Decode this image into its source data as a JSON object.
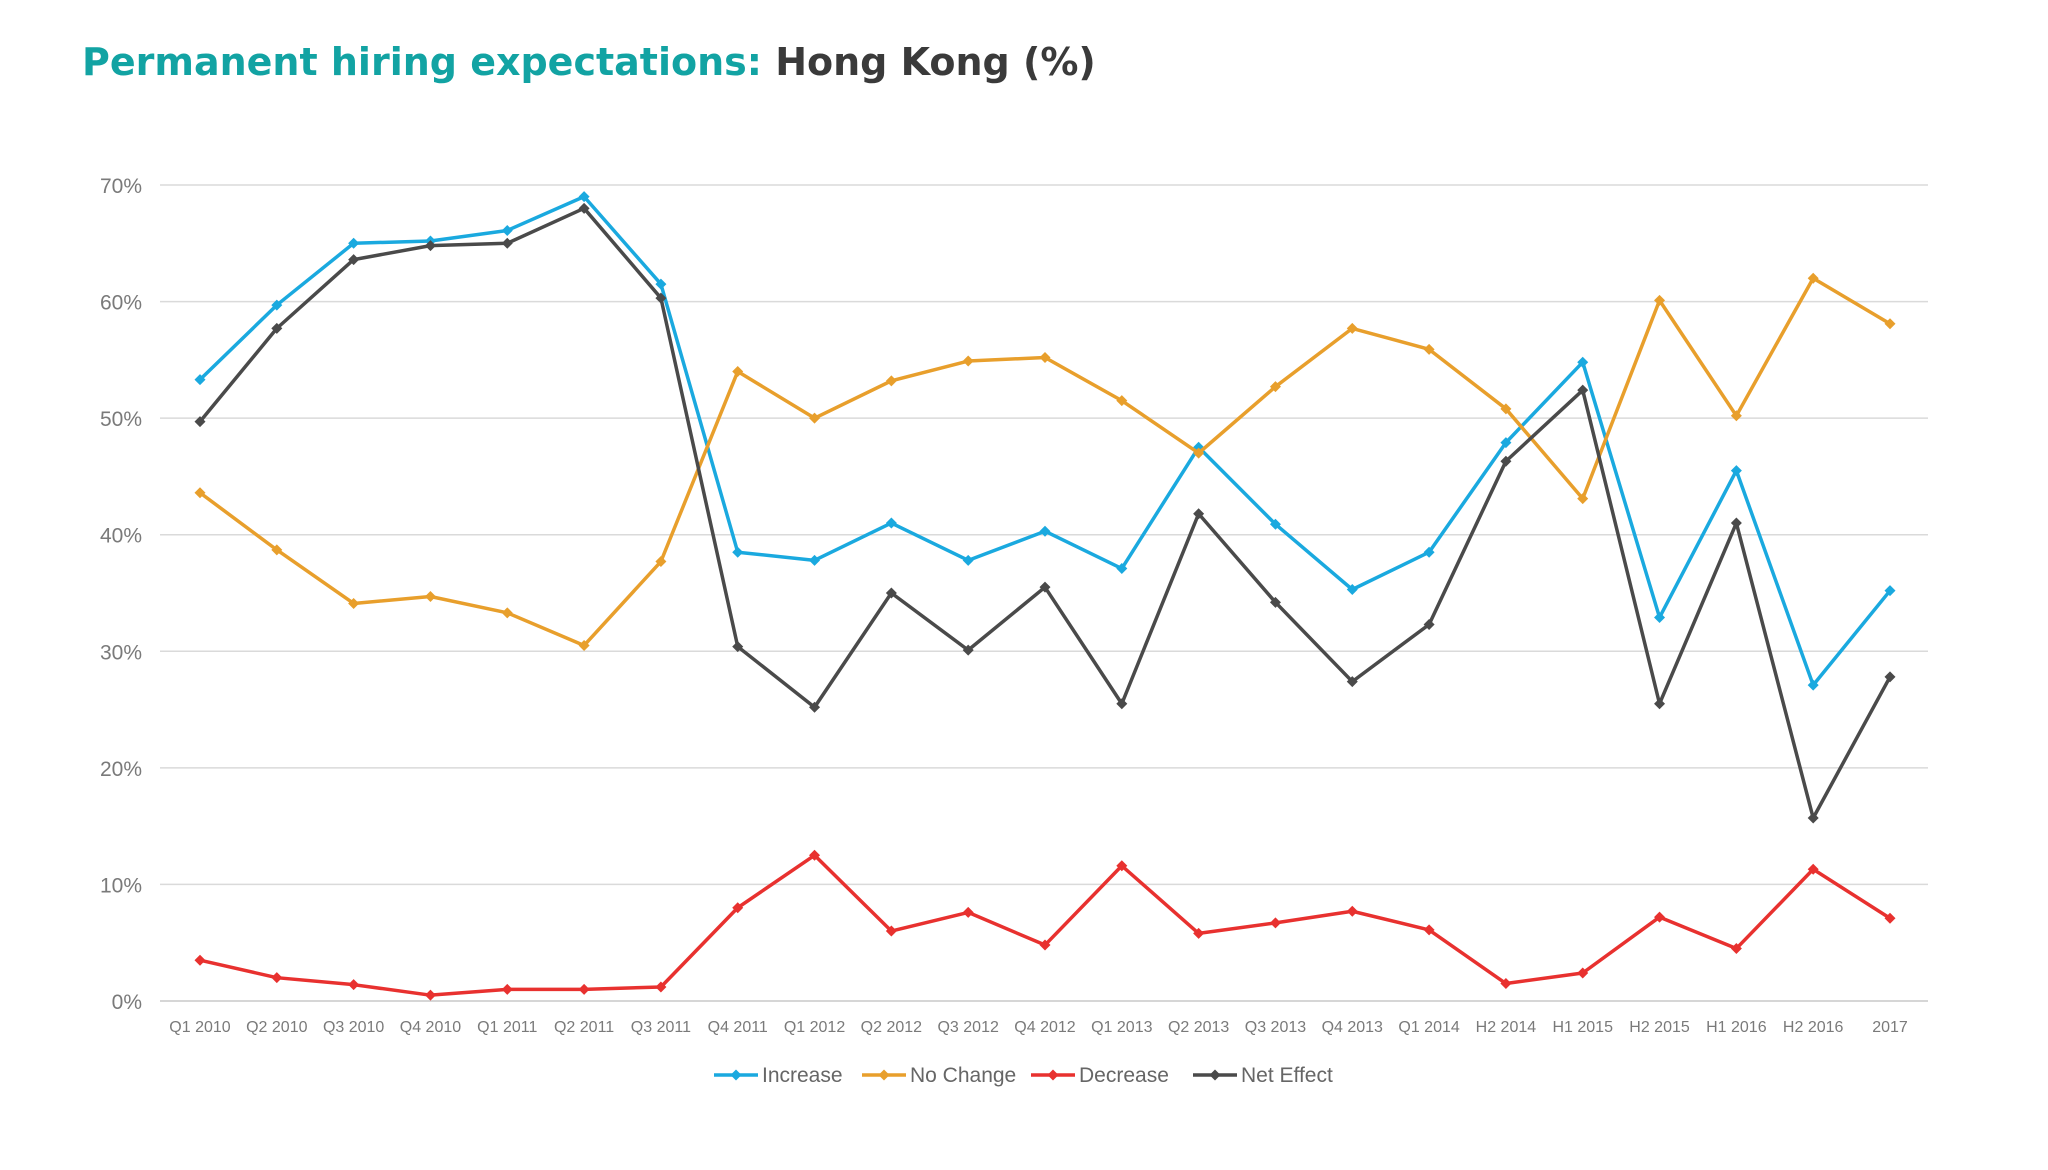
{
  "title": {
    "accent": "Permanent hiring expectations:",
    "rest": "Hong Kong (%)"
  },
  "chart_data": {
    "type": "line",
    "title": "Permanent hiring expectations: Hong Kong (%)",
    "xlabel": "",
    "ylabel": "",
    "ylim": [
      0,
      70
    ],
    "y_ticks": [
      "0%",
      "10%",
      "20%",
      "30%",
      "40%",
      "50%",
      "60%",
      "70%"
    ],
    "grid": true,
    "legend_position": "bottom-center",
    "categories": [
      "Q1 2010",
      "Q2 2010",
      "Q3 2010",
      "Q4 2010",
      "Q1 2011",
      "Q2 2011",
      "Q3 2011",
      "Q4 2011",
      "Q1 2012",
      "Q2 2012",
      "Q3 2012",
      "Q4 2012",
      "Q1 2013",
      "Q2 2013",
      "Q3 2013",
      "Q4 2013",
      "Q1 2014",
      "H2 2014",
      "H1 2015",
      "H2 2015",
      "H1 2016",
      "H2 2016",
      "2017"
    ],
    "series": [
      {
        "name": "Increase",
        "color": "#1aa9df",
        "values": [
          53.3,
          59.7,
          65.0,
          65.2,
          66.1,
          69.0,
          61.5,
          38.5,
          37.8,
          41.0,
          37.8,
          40.3,
          37.1,
          47.5,
          40.9,
          35.3,
          38.5,
          47.9,
          54.8,
          32.9,
          45.5,
          27.1,
          35.2
        ]
      },
      {
        "name": "No Change",
        "color": "#e89f2c",
        "values": [
          43.6,
          38.7,
          34.1,
          34.7,
          33.3,
          30.5,
          37.7,
          54.0,
          50.0,
          53.2,
          54.9,
          55.2,
          51.5,
          47.0,
          52.7,
          57.7,
          55.9,
          50.8,
          43.1,
          60.1,
          50.2,
          62.0,
          58.1
        ]
      },
      {
        "name": "Decrease",
        "color": "#e8312f",
        "values": [
          3.5,
          2.0,
          1.4,
          0.5,
          1.0,
          1.0,
          1.2,
          8.0,
          12.5,
          6.0,
          7.6,
          4.8,
          11.6,
          5.8,
          6.7,
          7.7,
          6.1,
          1.5,
          2.4,
          7.2,
          4.5,
          11.3,
          7.1
        ]
      },
      {
        "name": "Net Effect",
        "color": "#4a4a4a",
        "values": [
          49.7,
          57.7,
          63.6,
          64.8,
          65.0,
          68.0,
          60.3,
          30.4,
          25.2,
          35.0,
          30.1,
          35.5,
          25.5,
          41.8,
          34.2,
          27.4,
          32.3,
          46.3,
          52.4,
          25.5,
          41.0,
          15.7,
          27.8
        ]
      }
    ]
  }
}
